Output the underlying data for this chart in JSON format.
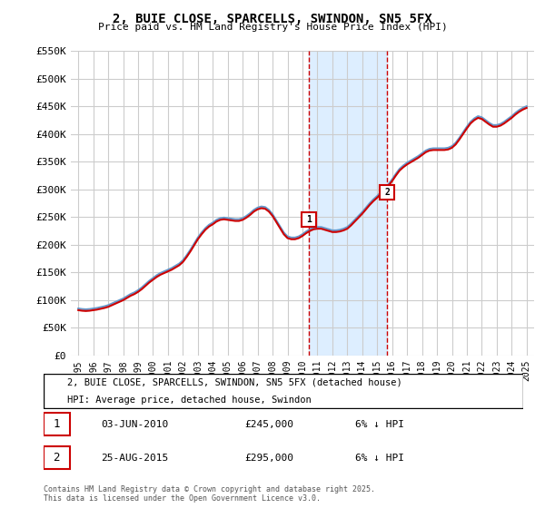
{
  "title": "2, BUIE CLOSE, SPARCELLS, SWINDON, SN5 5FX",
  "subtitle": "Price paid vs. HM Land Registry's House Price Index (HPI)",
  "ylabel": "",
  "xlabel": "",
  "ylim": [
    0,
    550000
  ],
  "yticks": [
    0,
    50000,
    100000,
    150000,
    200000,
    250000,
    300000,
    350000,
    400000,
    450000,
    500000,
    550000
  ],
  "ytick_labels": [
    "£0",
    "£50K",
    "£100K",
    "£150K",
    "£200K",
    "£250K",
    "£300K",
    "£350K",
    "£400K",
    "£450K",
    "£500K",
    "£550K"
  ],
  "xticks": [
    1995,
    1996,
    1997,
    1998,
    1999,
    2000,
    2001,
    2002,
    2003,
    2004,
    2005,
    2006,
    2007,
    2008,
    2009,
    2010,
    2011,
    2012,
    2013,
    2014,
    2015,
    2016,
    2017,
    2018,
    2019,
    2020,
    2021,
    2022,
    2023,
    2024,
    2025
  ],
  "sale1_x": 2010.42,
  "sale1_y": 245000,
  "sale1_label": "1",
  "sale1_date": "03-JUN-2010",
  "sale1_price": "£245,000",
  "sale1_note": "6% ↓ HPI",
  "sale2_x": 2015.65,
  "sale2_y": 295000,
  "sale2_label": "2",
  "sale2_date": "25-AUG-2015",
  "sale2_price": "£295,000",
  "sale2_note": "6% ↓ HPI",
  "shade_x1": 2010.42,
  "shade_x2": 2015.65,
  "red_line_color": "#cc0000",
  "blue_line_color": "#6699cc",
  "shade_color": "#ddeeff",
  "grid_color": "#cccccc",
  "background_color": "#ffffff",
  "legend_label_red": "2, BUIE CLOSE, SPARCELLS, SWINDON, SN5 5FX (detached house)",
  "legend_label_blue": "HPI: Average price, detached house, Swindon",
  "footer": "Contains HM Land Registry data © Crown copyright and database right 2025.\nThis data is licensed under the Open Government Licence v3.0.",
  "hpi_years": [
    1995.0,
    1995.25,
    1995.5,
    1995.75,
    1996.0,
    1996.25,
    1996.5,
    1996.75,
    1997.0,
    1997.25,
    1997.5,
    1997.75,
    1998.0,
    1998.25,
    1998.5,
    1998.75,
    1999.0,
    1999.25,
    1999.5,
    1999.75,
    2000.0,
    2000.25,
    2000.5,
    2000.75,
    2001.0,
    2001.25,
    2001.5,
    2001.75,
    2002.0,
    2002.25,
    2002.5,
    2002.75,
    2003.0,
    2003.25,
    2003.5,
    2003.75,
    2004.0,
    2004.25,
    2004.5,
    2004.75,
    2005.0,
    2005.25,
    2005.5,
    2005.75,
    2006.0,
    2006.25,
    2006.5,
    2006.75,
    2007.0,
    2007.25,
    2007.5,
    2007.75,
    2008.0,
    2008.25,
    2008.5,
    2008.75,
    2009.0,
    2009.25,
    2009.5,
    2009.75,
    2010.0,
    2010.25,
    2010.5,
    2010.75,
    2011.0,
    2011.25,
    2011.5,
    2011.75,
    2012.0,
    2012.25,
    2012.5,
    2012.75,
    2013.0,
    2013.25,
    2013.5,
    2013.75,
    2014.0,
    2014.25,
    2014.5,
    2014.75,
    2015.0,
    2015.25,
    2015.5,
    2015.75,
    2016.0,
    2016.25,
    2016.5,
    2016.75,
    2017.0,
    2017.25,
    2017.5,
    2017.75,
    2018.0,
    2018.25,
    2018.5,
    2018.75,
    2019.0,
    2019.25,
    2019.5,
    2019.75,
    2020.0,
    2020.25,
    2020.5,
    2020.75,
    2021.0,
    2021.25,
    2021.5,
    2021.75,
    2022.0,
    2022.25,
    2022.5,
    2022.75,
    2023.0,
    2023.25,
    2023.5,
    2023.75,
    2024.0,
    2024.25,
    2024.5,
    2024.75,
    2025.0
  ],
  "hpi_values": [
    85000,
    84000,
    83500,
    84000,
    85000,
    86000,
    87500,
    89000,
    91000,
    94000,
    97000,
    100000,
    103000,
    107000,
    111000,
    114000,
    118000,
    123000,
    129000,
    135000,
    140000,
    145000,
    149000,
    152000,
    155000,
    158000,
    162000,
    166000,
    172000,
    181000,
    191000,
    202000,
    213000,
    222000,
    230000,
    236000,
    240000,
    245000,
    248000,
    249000,
    248000,
    247000,
    246000,
    246000,
    248000,
    252000,
    257000,
    263000,
    267000,
    269000,
    268000,
    263000,
    255000,
    244000,
    233000,
    222000,
    215000,
    213000,
    213000,
    215000,
    219000,
    224000,
    228000,
    231000,
    232000,
    232000,
    230000,
    228000,
    226000,
    226000,
    227000,
    229000,
    232000,
    238000,
    245000,
    252000,
    259000,
    267000,
    275000,
    282000,
    288000,
    295000,
    302000,
    309000,
    318000,
    328000,
    337000,
    343000,
    348000,
    352000,
    356000,
    360000,
    365000,
    370000,
    373000,
    374000,
    374000,
    374000,
    374000,
    375000,
    378000,
    384000,
    393000,
    403000,
    413000,
    422000,
    428000,
    432000,
    430000,
    425000,
    420000,
    416000,
    416000,
    418000,
    422000,
    427000,
    432000,
    438000,
    443000,
    447000,
    450000
  ],
  "prop_years": [
    1995.0,
    1995.25,
    1995.5,
    1995.75,
    1996.0,
    1996.25,
    1996.5,
    1996.75,
    1997.0,
    1997.25,
    1997.5,
    1997.75,
    1998.0,
    1998.25,
    1998.5,
    1998.75,
    1999.0,
    1999.25,
    1999.5,
    1999.75,
    2000.0,
    2000.25,
    2000.5,
    2000.75,
    2001.0,
    2001.25,
    2001.5,
    2001.75,
    2002.0,
    2002.25,
    2002.5,
    2002.75,
    2003.0,
    2003.25,
    2003.5,
    2003.75,
    2004.0,
    2004.25,
    2004.5,
    2004.75,
    2005.0,
    2005.25,
    2005.5,
    2005.75,
    2006.0,
    2006.25,
    2006.5,
    2006.75,
    2007.0,
    2007.25,
    2007.5,
    2007.75,
    2008.0,
    2008.25,
    2008.5,
    2008.75,
    2009.0,
    2009.25,
    2009.5,
    2009.75,
    2010.0,
    2010.25,
    2010.5,
    2010.75,
    2011.0,
    2011.25,
    2011.5,
    2011.75,
    2012.0,
    2012.25,
    2012.5,
    2012.75,
    2013.0,
    2013.25,
    2013.5,
    2013.75,
    2014.0,
    2014.25,
    2014.5,
    2014.75,
    2015.0,
    2015.25,
    2015.5,
    2015.75,
    2016.0,
    2016.25,
    2016.5,
    2016.75,
    2017.0,
    2017.25,
    2017.5,
    2017.75,
    2018.0,
    2018.25,
    2018.5,
    2018.75,
    2019.0,
    2019.25,
    2019.5,
    2019.75,
    2020.0,
    2020.25,
    2020.5,
    2020.75,
    2021.0,
    2021.25,
    2021.5,
    2021.75,
    2022.0,
    2022.25,
    2022.5,
    2022.75,
    2023.0,
    2023.25,
    2023.5,
    2023.75,
    2024.0,
    2024.25,
    2024.5,
    2024.75,
    2025.0
  ],
  "prop_values": [
    82000,
    81000,
    80500,
    81000,
    82000,
    83000,
    84500,
    86000,
    88000,
    91000,
    94000,
    97000,
    100000,
    104000,
    108000,
    111000,
    115000,
    120000,
    126000,
    132000,
    137000,
    142000,
    146000,
    149000,
    152000,
    155000,
    159000,
    163000,
    169000,
    178000,
    188000,
    199000,
    210000,
    219000,
    227000,
    233000,
    237000,
    242000,
    245000,
    246000,
    245000,
    244000,
    243000,
    243000,
    245000,
    249000,
    254000,
    260000,
    264000,
    266000,
    265000,
    260000,
    252000,
    241000,
    230000,
    219000,
    212000,
    210000,
    210000,
    212000,
    216000,
    221000,
    225000,
    228000,
    229000,
    229000,
    227000,
    225000,
    223000,
    223000,
    224000,
    226000,
    229000,
    235000,
    242000,
    249000,
    256000,
    264000,
    272000,
    279000,
    285000,
    292000,
    299000,
    306000,
    315000,
    325000,
    334000,
    340000,
    345000,
    349000,
    353000,
    357000,
    362000,
    367000,
    370000,
    371000,
    371000,
    371000,
    371000,
    372000,
    375000,
    381000,
    390000,
    400000,
    410000,
    419000,
    425000,
    429000,
    427000,
    422000,
    417000,
    413000,
    413000,
    415000,
    419000,
    424000,
    429000,
    435000,
    440000,
    444000,
    447000
  ]
}
